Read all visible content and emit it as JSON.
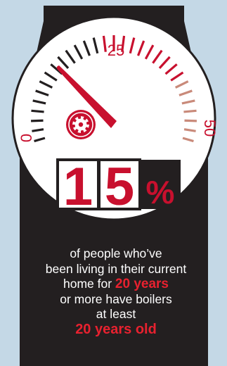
{
  "gauge": {
    "label_min": "0",
    "label_mid": "25",
    "label_max": "50",
    "value": 15,
    "max": 50
  },
  "stat": {
    "digit_1": "1",
    "digit_2": "5",
    "percent_sign": "%"
  },
  "caption": {
    "line_1": "of people who’ve",
    "line_2": "been living in their current",
    "line_3_prefix": "home for ",
    "line_3_highlight": "20 years",
    "line_4": "or more have boilers",
    "line_5": "at least",
    "line_6_highlight": "20 years old"
  },
  "colors": {
    "background": "#c4d8e6",
    "panel": "#231f20",
    "accent_red": "#c8102e",
    "tick_fade": "#c98a7a",
    "white": "#ffffff"
  }
}
